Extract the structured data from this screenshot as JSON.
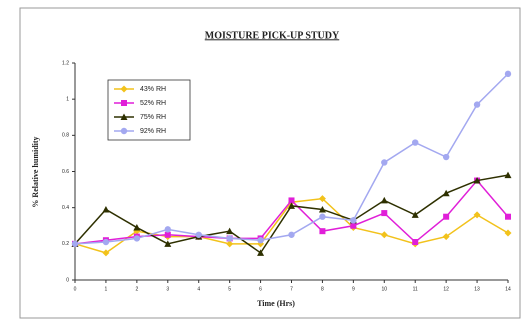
{
  "chart_data": {
    "type": "line",
    "title": "MOISTURE PICK-UP STUDY",
    "x_label": "Time (Hrs)",
    "y_label": "% Relative humidity",
    "x": [
      0,
      1,
      2,
      3,
      4,
      5,
      6,
      7,
      8,
      9,
      10,
      11,
      12,
      13,
      14
    ],
    "xlim": [
      0,
      14
    ],
    "xticks": [
      0,
      1,
      2,
      3,
      4,
      5,
      6,
      7,
      8,
      9,
      10,
      11,
      12,
      13,
      14
    ],
    "ylim": [
      0,
      1.2
    ],
    "yticks": [
      0,
      0.2,
      0.4,
      0.6,
      0.8,
      1,
      1.2
    ],
    "legend": "upper left",
    "series": [
      {
        "name": "43% RH",
        "color": "#f2c21b",
        "values": [
          0.2,
          0.15,
          0.27,
          0.24,
          0.24,
          0.2,
          0.2,
          0.43,
          0.45,
          0.29,
          0.25,
          0.2,
          0.24,
          0.36,
          0.26
        ]
      },
      {
        "name": "52% RH",
        "color": "#e01fd8",
        "values": [
          0.2,
          0.22,
          0.24,
          0.25,
          0.24,
          0.23,
          0.23,
          0.44,
          0.27,
          0.3,
          0.37,
          0.21,
          0.35,
          0.55,
          0.35
        ]
      },
      {
        "name": "75% RH",
        "color": "#2e3000",
        "values": [
          0.2,
          0.39,
          0.29,
          0.2,
          0.24,
          0.27,
          0.15,
          0.41,
          0.39,
          0.33,
          0.44,
          0.36,
          0.48,
          0.55,
          0.58
        ]
      },
      {
        "name": "92% RH",
        "color": "#a3a8f0",
        "values": [
          0.2,
          0.21,
          0.23,
          0.28,
          0.25,
          0.23,
          0.22,
          0.25,
          0.35,
          0.33,
          0.65,
          0.76,
          0.68,
          0.97,
          1.14
        ]
      }
    ]
  }
}
